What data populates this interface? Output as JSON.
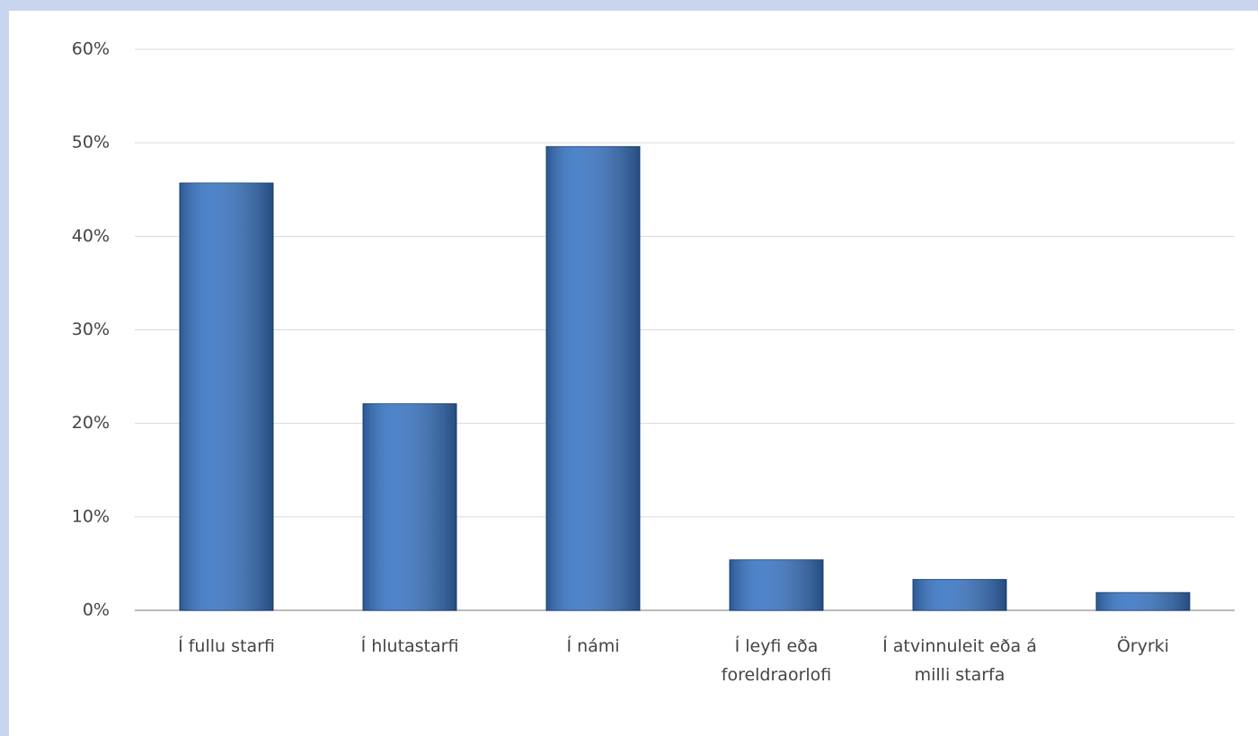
{
  "chart_data": {
    "type": "bar",
    "categories": [
      "Í fullu starfi",
      "Í hlutastarfi",
      "Í námi",
      "Í leyfi eða foreldraorlofi",
      "Í atvinnuleit eða á milli starfa",
      "Öryrki"
    ],
    "values": [
      45.7,
      22.1,
      49.6,
      5.4,
      3.3,
      1.9
    ],
    "color": "#3a76c4",
    "ylim": [
      0,
      60
    ],
    "yticks": [
      {
        "value": 0,
        "label": "0%"
      },
      {
        "value": 10,
        "label": "10%"
      },
      {
        "value": 20,
        "label": "20%"
      },
      {
        "value": 30,
        "label": "30%"
      },
      {
        "value": 40,
        "label": "40%"
      },
      {
        "value": 50,
        "label": "50%"
      },
      {
        "value": 60,
        "label": "60%"
      }
    ],
    "grid": true
  }
}
